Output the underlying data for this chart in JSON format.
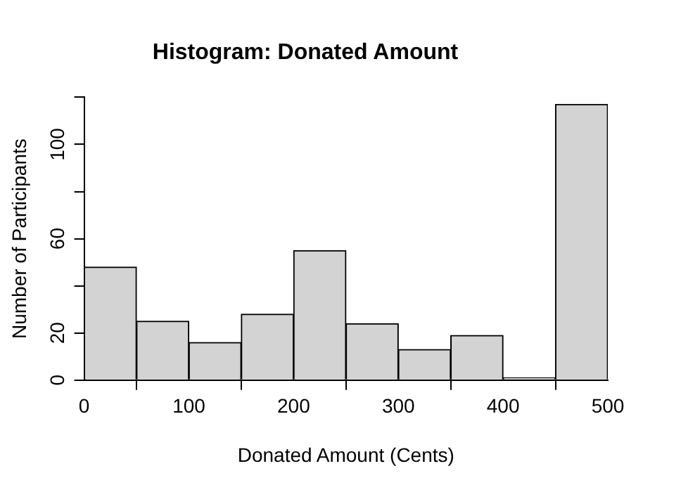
{
  "chart_data": {
    "type": "histogram",
    "title": "Histogram: Donated Amount",
    "xlabel": "Donated Amount (Cents)",
    "ylabel": "Number of Participants",
    "bins": [
      0,
      50,
      100,
      150,
      200,
      250,
      300,
      350,
      400,
      450,
      500
    ],
    "values": [
      48,
      25,
      16,
      28,
      55,
      24,
      13,
      19,
      1,
      117
    ],
    "color": "#d3d3d3",
    "xlim": [
      0,
      500
    ],
    "xticks": [
      0,
      100,
      200,
      300,
      400,
      500
    ],
    "ylim": [
      0,
      120
    ],
    "yticks": [
      0,
      20,
      {
        "value": 40,
        "label": null
      },
      60,
      {
        "value": 80,
        "label": null
      },
      100,
      {
        "value": 120,
        "label": null
      }
    ],
    "grid": false
  }
}
